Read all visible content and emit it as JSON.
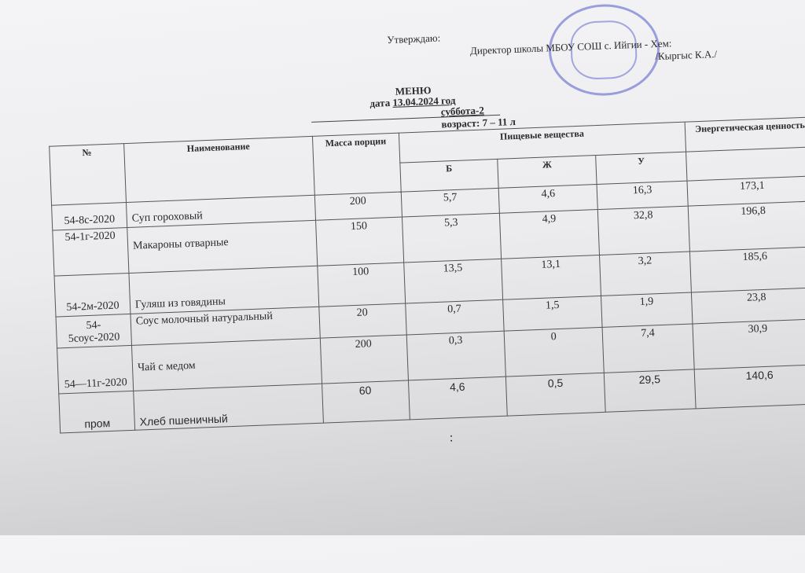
{
  "header": {
    "approve": "Утверждаю:",
    "director": "Директор школы МБОУ СОШ с. Ийгии - Хем:",
    "signer": "/Кыргыс К.А./",
    "title": "МЕНЮ",
    "date_label": "дата",
    "date": "13.04.2024 год",
    "day": "суббота-2",
    "age": "возраст: 7 – 11 л"
  },
  "table": {
    "columns": {
      "num": "№",
      "name": "Наименование",
      "mass": "Масса порции",
      "nutrients": "Пищевые вещества",
      "energy": "Энергетическая ценность",
      "b": "Б",
      "zh": "Ж",
      "u": "У"
    },
    "rows": [
      {
        "num": "54-8с-2020",
        "name": "Суп  гороховый",
        "mass": "200",
        "b": "5,7",
        "zh": "4,6",
        "u": "16,3",
        "energy": "173,1"
      },
      {
        "num": "54-1г-2020",
        "name": "Макароны отварные",
        "mass": "150",
        "b": "5,3",
        "zh": "4,9",
        "u": "32,8",
        "energy": "196,8"
      },
      {
        "num": "54-2м-2020",
        "name": "Гуляш из говядины",
        "mass": "100",
        "b": "13,5",
        "zh": "13,1",
        "u": "3,2",
        "energy": "185,6"
      },
      {
        "num": "54-5соус-2020",
        "name": "Соус молочный натуральный",
        "mass": "20",
        "b": "0,7",
        "zh": "1,5",
        "u": "1,9",
        "energy": "23,8"
      },
      {
        "num": "54—11г-2020",
        "name": "Чай с медом",
        "mass": "200",
        "b": "0,3",
        "zh": "0",
        "u": "7,4",
        "energy": "30,9"
      },
      {
        "num": "пром",
        "name": "Хлеб пшеничный",
        "mass": "60",
        "b": "4,6",
        "zh": "0,5",
        "u": "29,5",
        "energy": "140,6"
      }
    ]
  },
  "footer": {
    "mark": ":"
  }
}
